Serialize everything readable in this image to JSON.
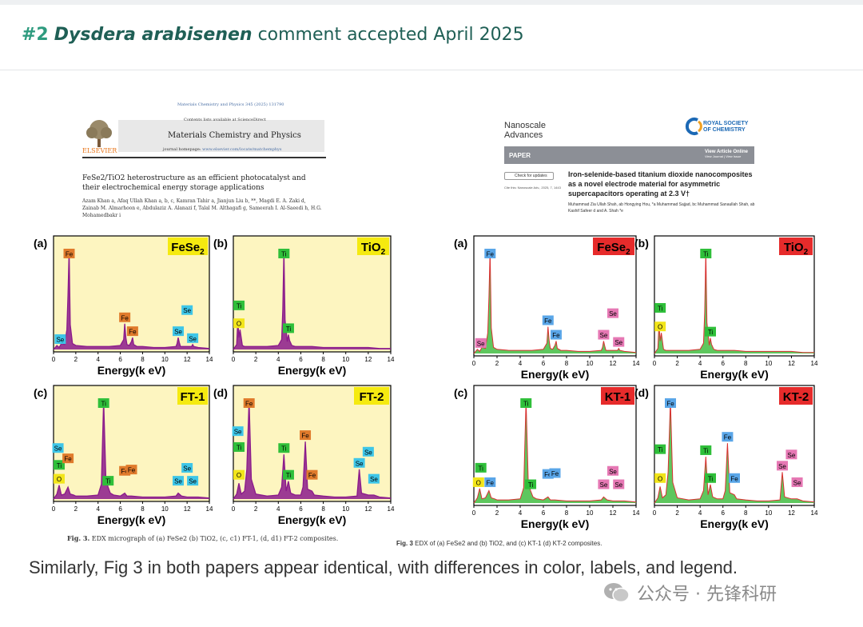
{
  "header": {
    "number": "#2",
    "species": "Dysdera arabisenen",
    "status": "comment accepted April 2025"
  },
  "left_paper": {
    "journal_citation": "Materials Chemistry and Physics 345 (2025) 131790",
    "contents": "Contents lists available at ScienceDirect",
    "journal": "Materials Chemistry and Physics",
    "homepage_label": "journal homepage:",
    "homepage_url": "www.elsevier.com/locate/matchemphys",
    "publisher": "ELSEVIER",
    "title": "FeSe2/TiO2 heterostructure as an efficient photocatalyst and their electrochemical energy storage applications",
    "authors": "Azam Khan a, Afaq Ullah Khan a, b, c, Kamran Tahir a, Jianjun Liu b, **, Magdi E. A. Zaki d, Zainab M. Almarhoon e, Abdulaziz A. Alanazi f, Talal M. Althagafi g, Sameerah I. Al-Saeedi h, H.G. Mohamedbakr i",
    "caption_prefix": "Fig. 3.",
    "caption": "EDX micrograph of (a) FeSe2 (b) TiO2, (c, c1) FT-1, (d, d1) FT-2 composites."
  },
  "right_paper": {
    "journal_line1": "Nanoscale",
    "journal_line2": "Advances",
    "publisher_line1": "ROYAL SOCIETY",
    "publisher_line2": "OF CHEMISTRY",
    "bar_label": "PAPER",
    "view_online": "View Article Online",
    "view_journal": "View Journal | View Issue",
    "check_updates": "Check for updates",
    "cite": "Cite this: Nanoscale Adv., 2025, 7, 1443",
    "title": "Iron-selenide-based titanium dioxide nanocomposites as a novel electrode material for asymmetric supercapacitors operating at 2.3 V†",
    "authors": "Muhammad Zia Ullah Shah, ab Hongying Hou, *a Muhammad Sajjad, bc Muhammad Sanaullah Shah, ab Kashif Safeer d and A. Shah *e",
    "caption_prefix": "Fig. 3",
    "caption": "EDX of (a) FeSe2 and (b) TiO2, and (c) KT-1 (d) KT-2 composites."
  },
  "summary": "Similarly, Fig 3 in both papers appear identical, with differences in color, labels, and legend.",
  "watermark": "公众号 · 先锋科研",
  "chart_data": [
    {
      "type": "line",
      "panel": "(a)",
      "sample": "FeSe",
      "sample_sub": "2",
      "group": "left",
      "xlabel": "Energy(k eV)",
      "ylabel": "",
      "xlim": [
        0,
        14
      ],
      "x": [
        0,
        0.3,
        0.5,
        0.7,
        1.0,
        1.2,
        1.3,
        1.4,
        1.5,
        1.7,
        2,
        3,
        4,
        5,
        6,
        6.3,
        6.4,
        6.5,
        6.6,
        6.8,
        7.0,
        7.1,
        7.2,
        7.5,
        8,
        9,
        10,
        11,
        11.1,
        11.2,
        11.3,
        11.4,
        11.6,
        12,
        12.4,
        12.5,
        12.6,
        13,
        14
      ],
      "y": [
        0,
        4,
        2,
        6,
        5,
        20,
        55,
        100,
        25,
        6,
        4,
        3,
        3,
        3,
        4,
        10,
        26,
        12,
        5,
        4,
        8,
        12,
        5,
        3,
        3,
        2,
        2,
        3,
        6,
        12,
        7,
        3,
        3,
        3,
        3,
        5,
        3,
        2,
        1
      ],
      "peaks": [
        {
          "label": "Fe",
          "x": 1.4,
          "y": 100,
          "color": "#e07b2c"
        },
        {
          "label": "Se",
          "x": 0.6,
          "y": 4,
          "color": "#3ec6e8"
        },
        {
          "label": "Fe",
          "x": 6.4,
          "y": 26,
          "color": "#e07b2c"
        },
        {
          "label": "Fe",
          "x": 7.1,
          "y": 12,
          "color": "#e07b2c"
        },
        {
          "label": "Se",
          "x": 11.2,
          "y": 12,
          "color": "#3ec6e8"
        },
        {
          "label": "Se",
          "x": 12.0,
          "y": 22,
          "color": "#3ec6e8"
        },
        {
          "label": "Se",
          "x": 12.5,
          "y": 5,
          "color": "#3ec6e8"
        }
      ]
    },
    {
      "type": "line",
      "panel": "(b)",
      "sample": "TiO",
      "sample_sub": "2",
      "group": "left",
      "xlabel": "Energy(k eV)",
      "ylabel": "",
      "xlim": [
        0,
        14
      ],
      "x": [
        0,
        0.3,
        0.4,
        0.5,
        0.6,
        0.8,
        1,
        2,
        3,
        4,
        4.3,
        4.4,
        4.5,
        4.6,
        4.8,
        4.9,
        5.0,
        5.2,
        5.5,
        6,
        7,
        8,
        9,
        10,
        11,
        12,
        13,
        14
      ],
      "y": [
        0,
        5,
        30,
        12,
        20,
        4,
        3,
        3,
        3,
        4,
        10,
        40,
        100,
        30,
        8,
        15,
        9,
        4,
        3,
        3,
        3,
        2,
        2,
        2,
        2,
        2,
        1,
        1
      ],
      "peaks": [
        {
          "label": "O",
          "x": 0.5,
          "y": 20,
          "color": "#f2e51a"
        },
        {
          "label": "Ti",
          "x": 0.5,
          "y": 38,
          "color": "#2fbf3a"
        },
        {
          "label": "Ti",
          "x": 4.5,
          "y": 100,
          "color": "#2fbf3a"
        },
        {
          "label": "Ti",
          "x": 4.9,
          "y": 15,
          "color": "#2fbf3a"
        }
      ]
    },
    {
      "type": "line",
      "panel": "(c)",
      "sample": "FT-1",
      "sample_sub": "",
      "group": "left",
      "xlabel": "Energy(k eV)",
      "ylabel": "",
      "xlim": [
        0,
        14
      ],
      "x": [
        0,
        0.3,
        0.5,
        0.7,
        1,
        1.3,
        1.5,
        1.8,
        2,
        3,
        4,
        4.3,
        4.5,
        4.7,
        4.9,
        5.1,
        5.4,
        6,
        6.4,
        6.6,
        7,
        8,
        9,
        10,
        11,
        11.2,
        11.5,
        12,
        13,
        14
      ],
      "y": [
        0,
        5,
        14,
        4,
        5,
        12,
        5,
        4,
        3,
        3,
        4,
        15,
        100,
        20,
        12,
        6,
        4,
        3,
        6,
        3,
        3,
        2,
        2,
        2,
        3,
        6,
        3,
        2,
        2,
        1
      ],
      "peaks": [
        {
          "label": "O",
          "x": 0.5,
          "y": 14,
          "color": "#f2e51a"
        },
        {
          "label": "Se",
          "x": 0.4,
          "y": 45,
          "color": "#3ec6e8"
        },
        {
          "label": "Ti",
          "x": 0.5,
          "y": 28,
          "color": "#2fbf3a"
        },
        {
          "label": "Fe",
          "x": 1.3,
          "y": 12,
          "color": "#e07b2c"
        },
        {
          "label": "Ti",
          "x": 4.5,
          "y": 100,
          "color": "#2fbf3a"
        },
        {
          "label": "Ti",
          "x": 4.9,
          "y": 12,
          "color": "#2fbf3a"
        },
        {
          "label": "Fe",
          "x": 6.4,
          "y": 22,
          "color": "#e07b2c"
        },
        {
          "label": "Fe",
          "x": 7.0,
          "y": 12,
          "color": "#e07b2c"
        },
        {
          "label": "Se",
          "x": 11.2,
          "y": 12,
          "color": "#3ec6e8"
        },
        {
          "label": "Se",
          "x": 12.0,
          "y": 25,
          "color": "#3ec6e8"
        },
        {
          "label": "Se",
          "x": 12.5,
          "y": 12,
          "color": "#3ec6e8"
        }
      ]
    },
    {
      "type": "line",
      "panel": "(d)",
      "sample": "FT-2",
      "sample_sub": "",
      "group": "left",
      "xlabel": "Energy(k eV)",
      "ylabel": "",
      "xlim": [
        0,
        14
      ],
      "x": [
        0,
        0.3,
        0.5,
        0.7,
        1,
        1.2,
        1.4,
        1.6,
        2,
        3,
        4,
        4.3,
        4.5,
        4.7,
        4.9,
        5.1,
        5.5,
        6,
        6.2,
        6.4,
        6.6,
        7.0,
        7.2,
        8,
        9,
        10,
        11,
        11.2,
        11.4,
        12,
        12.5,
        13,
        14
      ],
      "y": [
        0,
        5,
        16,
        5,
        8,
        30,
        100,
        20,
        5,
        3,
        4,
        12,
        45,
        8,
        18,
        6,
        4,
        4,
        12,
        58,
        10,
        8,
        4,
        3,
        2,
        2,
        3,
        30,
        6,
        4,
        4,
        2,
        1
      ],
      "peaks": [
        {
          "label": "Fe",
          "x": 1.4,
          "y": 100,
          "color": "#e07b2c"
        },
        {
          "label": "Se",
          "x": 0.4,
          "y": 62,
          "color": "#3ec6e8"
        },
        {
          "label": "Ti",
          "x": 0.5,
          "y": 46,
          "color": "#2fbf3a"
        },
        {
          "label": "O",
          "x": 0.5,
          "y": 18,
          "color": "#f2e51a"
        },
        {
          "label": "Ti",
          "x": 4.5,
          "y": 45,
          "color": "#2fbf3a"
        },
        {
          "label": "Ti",
          "x": 4.9,
          "y": 18,
          "color": "#2fbf3a"
        },
        {
          "label": "Fe",
          "x": 6.4,
          "y": 58,
          "color": "#e07b2c"
        },
        {
          "label": "Fe",
          "x": 7.0,
          "y": 18,
          "color": "#e07b2c"
        },
        {
          "label": "Se",
          "x": 11.2,
          "y": 30,
          "color": "#3ec6e8"
        },
        {
          "label": "Se",
          "x": 12.0,
          "y": 30,
          "color": "#3ec6e8"
        },
        {
          "label": "Se",
          "x": 12.5,
          "y": 14,
          "color": "#3ec6e8"
        }
      ]
    },
    {
      "type": "line",
      "panel": "(a)",
      "sample": "FeSe",
      "sample_sub": "2",
      "group": "right",
      "xlabel": "Energy(k eV)",
      "ylabel": "",
      "xlim": [
        0,
        14
      ],
      "x": [
        0,
        0.3,
        0.5,
        0.7,
        1.0,
        1.2,
        1.3,
        1.4,
        1.5,
        1.7,
        2,
        3,
        4,
        5,
        6,
        6.3,
        6.4,
        6.5,
        6.6,
        6.8,
        7.0,
        7.1,
        7.2,
        7.5,
        8,
        9,
        10,
        11,
        11.1,
        11.2,
        11.3,
        11.4,
        11.6,
        12,
        12.4,
        12.5,
        12.6,
        13,
        14
      ],
      "y": [
        0,
        4,
        2,
        6,
        5,
        20,
        55,
        100,
        25,
        6,
        4,
        3,
        3,
        3,
        4,
        10,
        26,
        12,
        5,
        4,
        8,
        12,
        5,
        3,
        3,
        2,
        2,
        3,
        6,
        12,
        7,
        3,
        3,
        3,
        3,
        5,
        3,
        2,
        1
      ],
      "peaks": [
        {
          "label": "Fe",
          "x": 1.4,
          "y": 100,
          "color": "#5aa6e8"
        },
        {
          "label": "Se",
          "x": 0.6,
          "y": 4,
          "color": "#e678b4"
        },
        {
          "label": "Fe",
          "x": 6.4,
          "y": 26,
          "color": "#5aa6e8"
        },
        {
          "label": "Fe",
          "x": 7.1,
          "y": 12,
          "color": "#5aa6e8"
        },
        {
          "label": "Se",
          "x": 11.2,
          "y": 12,
          "color": "#e678b4"
        },
        {
          "label": "Se",
          "x": 12.0,
          "y": 22,
          "color": "#e678b4"
        },
        {
          "label": "Se",
          "x": 12.5,
          "y": 5,
          "color": "#e678b4"
        }
      ]
    },
    {
      "type": "line",
      "panel": "(b)",
      "sample": "TiO",
      "sample_sub": "2",
      "group": "right",
      "xlabel": "Energy(k eV)",
      "ylabel": "",
      "xlim": [
        0,
        14
      ],
      "x": [
        0,
        0.3,
        0.4,
        0.5,
        0.6,
        0.8,
        1,
        2,
        3,
        4,
        4.3,
        4.4,
        4.5,
        4.6,
        4.8,
        4.9,
        5.0,
        5.2,
        5.5,
        6,
        7,
        8,
        9,
        10,
        11,
        12,
        13,
        14
      ],
      "y": [
        0,
        5,
        30,
        12,
        20,
        4,
        3,
        3,
        3,
        4,
        10,
        40,
        100,
        30,
        8,
        15,
        9,
        4,
        3,
        3,
        3,
        2,
        2,
        2,
        2,
        2,
        1,
        1
      ],
      "peaks": [
        {
          "label": "O",
          "x": 0.5,
          "y": 20,
          "color": "#f2e51a"
        },
        {
          "label": "Ti",
          "x": 0.5,
          "y": 38,
          "color": "#2fbf3a"
        },
        {
          "label": "Ti",
          "x": 4.5,
          "y": 100,
          "color": "#2fbf3a"
        },
        {
          "label": "Ti",
          "x": 4.9,
          "y": 15,
          "color": "#2fbf3a"
        }
      ]
    },
    {
      "type": "line",
      "panel": "(c)",
      "sample": "KT-1",
      "sample_sub": "",
      "group": "right",
      "xlabel": "Energy(k eV)",
      "ylabel": "",
      "xlim": [
        0,
        14
      ],
      "x": [
        0,
        0.3,
        0.5,
        0.7,
        1,
        1.3,
        1.5,
        1.8,
        2,
        3,
        4,
        4.3,
        4.5,
        4.7,
        4.9,
        5.1,
        5.4,
        6,
        6.4,
        6.6,
        7,
        8,
        9,
        10,
        11,
        11.2,
        11.5,
        12,
        13,
        14
      ],
      "y": [
        0,
        5,
        14,
        4,
        5,
        12,
        5,
        4,
        3,
        3,
        4,
        15,
        100,
        20,
        12,
        6,
        4,
        3,
        6,
        3,
        3,
        2,
        2,
        2,
        3,
        6,
        3,
        2,
        2,
        1
      ],
      "peaks": [
        {
          "label": "O",
          "x": 0.4,
          "y": 14,
          "color": "#f2e51a"
        },
        {
          "label": "Ti",
          "x": 0.6,
          "y": 28,
          "color": "#2fbf3a"
        },
        {
          "label": "Fe",
          "x": 1.4,
          "y": 14,
          "color": "#5aa6e8"
        },
        {
          "label": "Ti",
          "x": 4.5,
          "y": 100,
          "color": "#2fbf3a"
        },
        {
          "label": "Ti",
          "x": 4.9,
          "y": 12,
          "color": "#2fbf3a"
        },
        {
          "label": "Fe",
          "x": 6.4,
          "y": 22,
          "color": "#5aa6e8"
        },
        {
          "label": "Fe",
          "x": 7.0,
          "y": 12,
          "color": "#5aa6e8"
        },
        {
          "label": "Se",
          "x": 11.2,
          "y": 12,
          "color": "#e678b4"
        },
        {
          "label": "Se",
          "x": 12.0,
          "y": 25,
          "color": "#e678b4"
        },
        {
          "label": "Se",
          "x": 12.5,
          "y": 12,
          "color": "#e678b4"
        }
      ]
    },
    {
      "type": "line",
      "panel": "(d)",
      "sample": "KT-2",
      "sample_sub": "",
      "group": "right",
      "xlabel": "Energy(k eV)",
      "ylabel": "",
      "xlim": [
        0,
        14
      ],
      "x": [
        0,
        0.3,
        0.5,
        0.7,
        1,
        1.2,
        1.4,
        1.6,
        2,
        3,
        4,
        4.3,
        4.5,
        4.7,
        4.9,
        5.1,
        5.5,
        6,
        6.2,
        6.4,
        6.6,
        7.0,
        7.2,
        8,
        9,
        10,
        11,
        11.2,
        11.4,
        12,
        12.5,
        13,
        14
      ],
      "y": [
        0,
        5,
        16,
        5,
        8,
        30,
        100,
        20,
        5,
        3,
        4,
        12,
        45,
        8,
        18,
        6,
        4,
        4,
        12,
        58,
        10,
        8,
        4,
        3,
        2,
        2,
        3,
        30,
        6,
        4,
        4,
        2,
        1
      ],
      "peaks": [
        {
          "label": "Fe",
          "x": 1.4,
          "y": 100,
          "color": "#5aa6e8"
        },
        {
          "label": "Ti",
          "x": 0.5,
          "y": 46,
          "color": "#2fbf3a"
        },
        {
          "label": "O",
          "x": 0.5,
          "y": 18,
          "color": "#f2e51a"
        },
        {
          "label": "Ti",
          "x": 4.5,
          "y": 45,
          "color": "#2fbf3a"
        },
        {
          "label": "Ti",
          "x": 4.9,
          "y": 18,
          "color": "#2fbf3a"
        },
        {
          "label": "Fe",
          "x": 6.4,
          "y": 58,
          "color": "#5aa6e8"
        },
        {
          "label": "Fe",
          "x": 7.0,
          "y": 18,
          "color": "#5aa6e8"
        },
        {
          "label": "Se",
          "x": 11.2,
          "y": 30,
          "color": "#e678b4"
        },
        {
          "label": "Se",
          "x": 12.0,
          "y": 30,
          "color": "#e678b4"
        },
        {
          "label": "Se",
          "x": 12.5,
          "y": 14,
          "color": "#e678b4"
        }
      ]
    }
  ],
  "styles": {
    "left_bg": "#fdf5c0",
    "left_line": "#8b1a8b",
    "left_badge": "#f5ea10",
    "right_bg": "#ffffff",
    "right_line_top": "#d93030",
    "right_line_fill": "#4cc14c",
    "right_badge": "#e62b2b"
  }
}
